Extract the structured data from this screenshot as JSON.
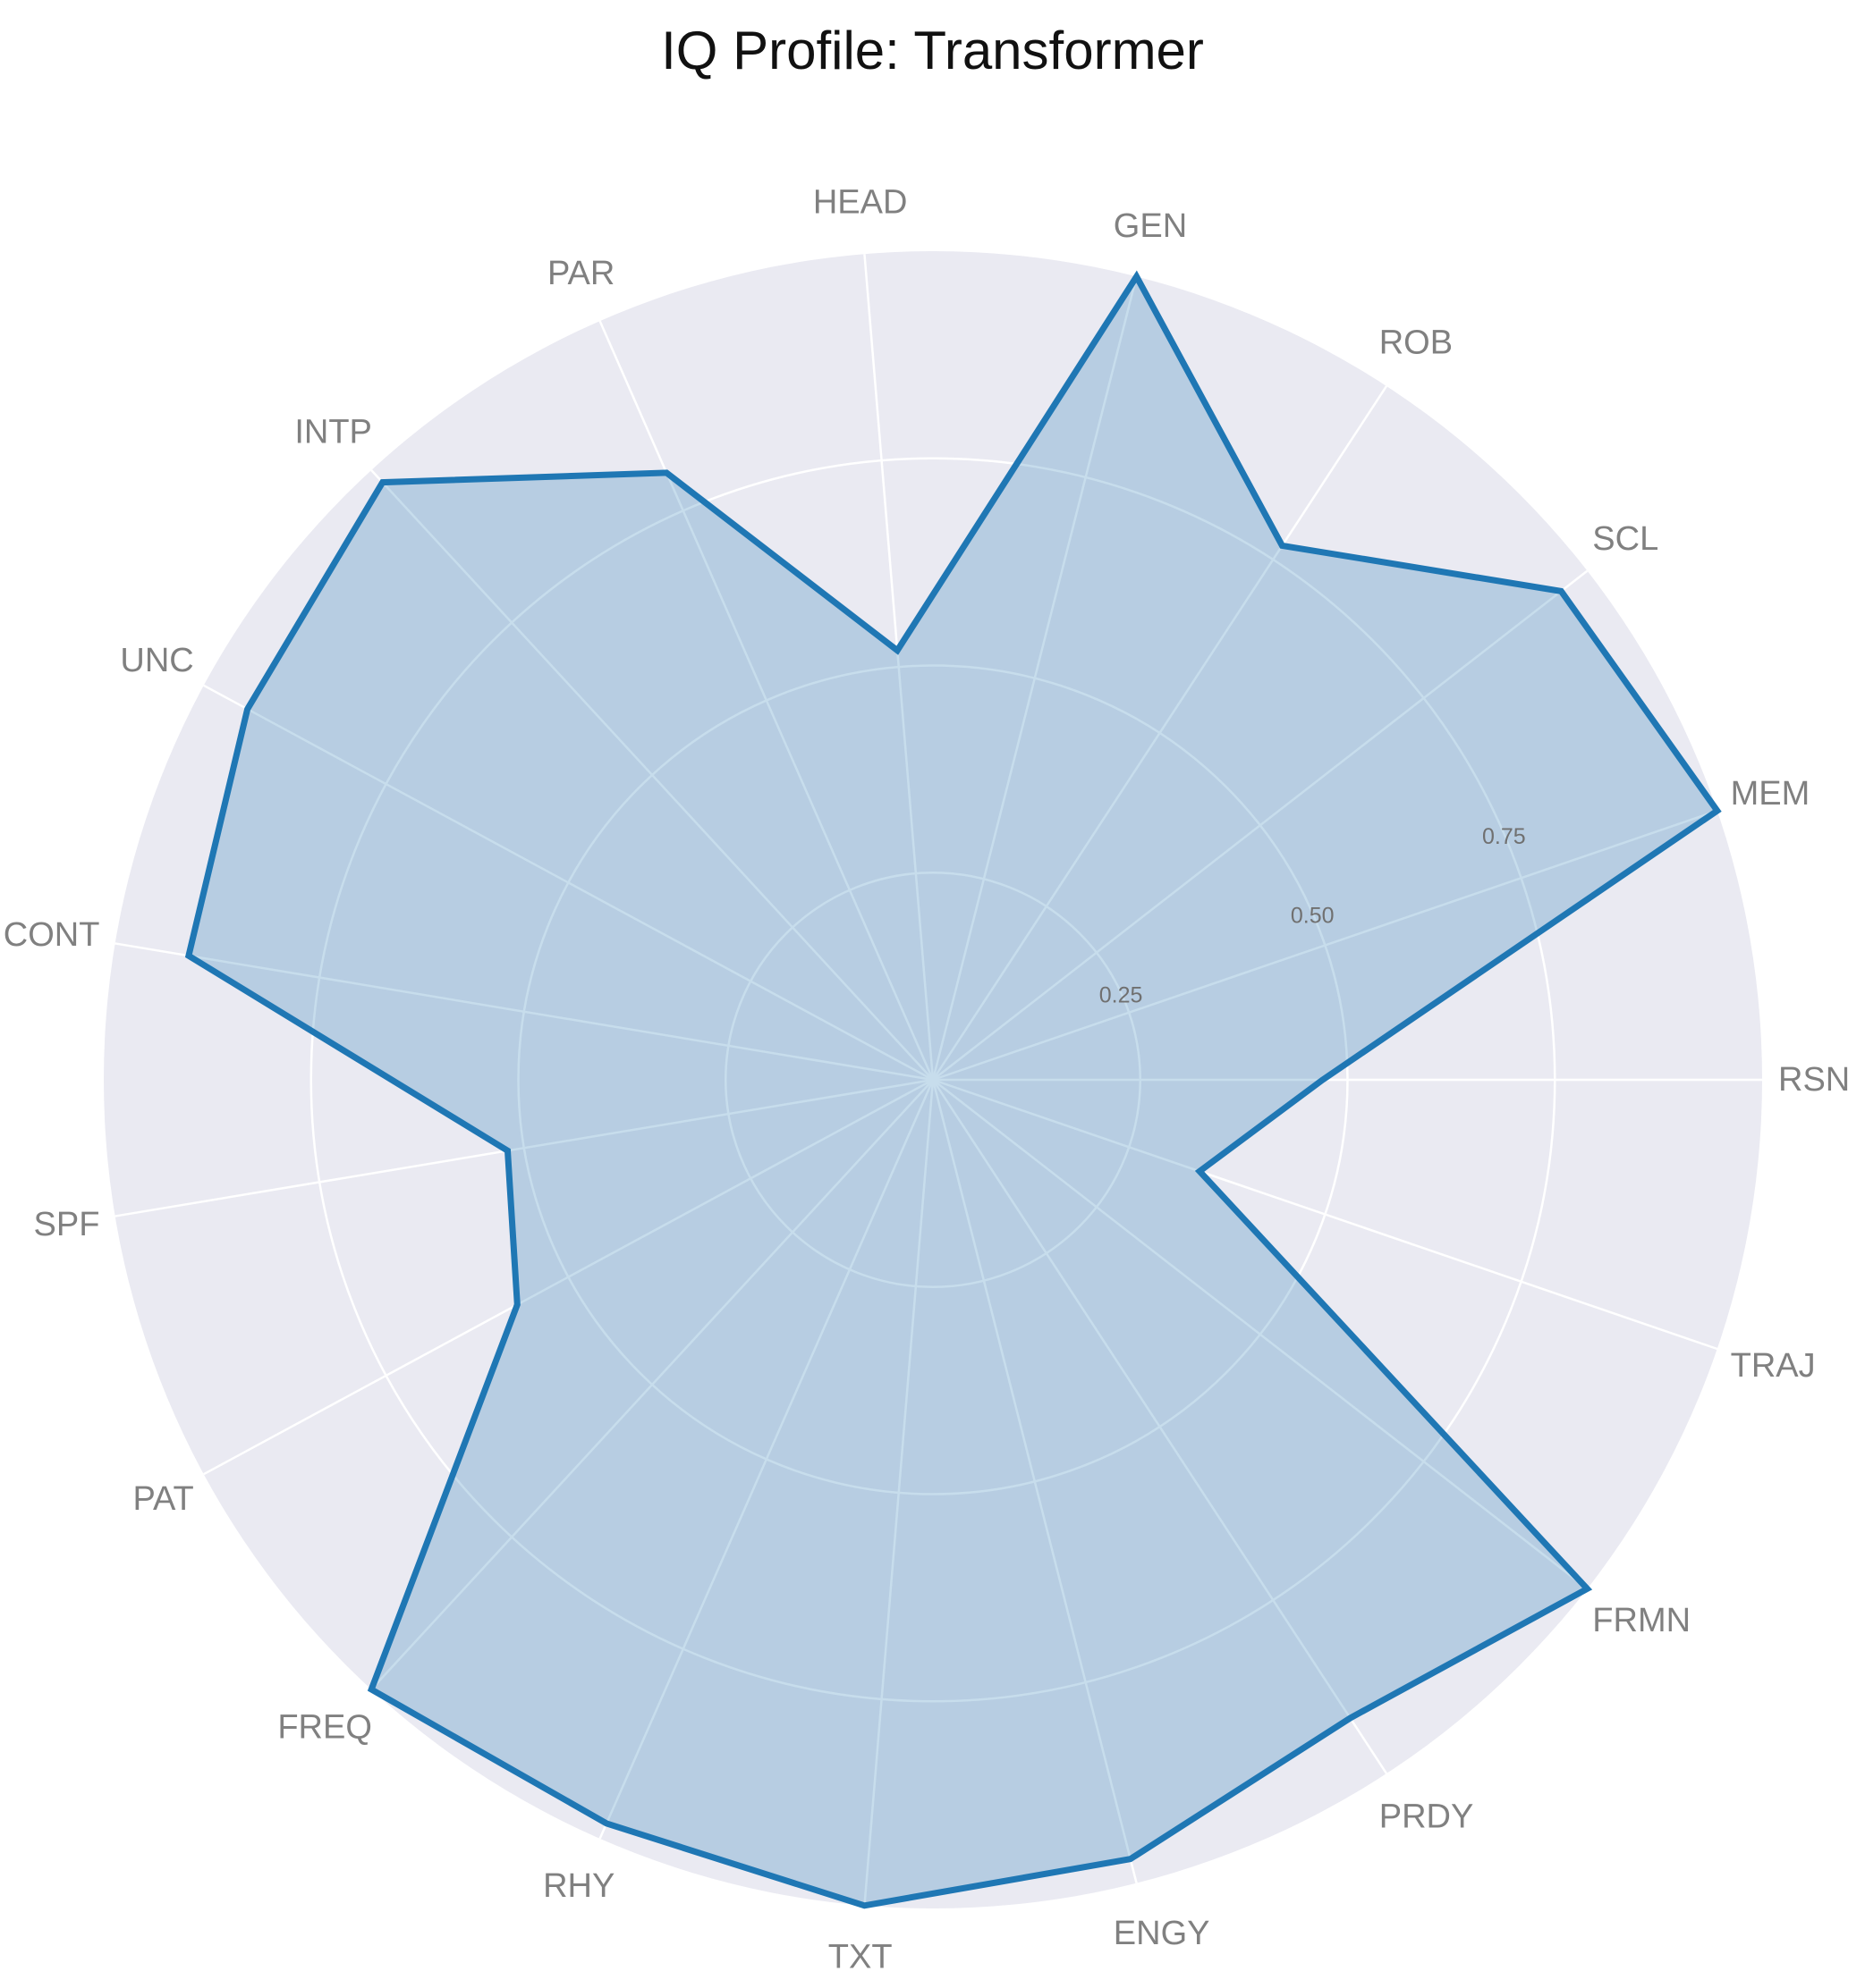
{
  "chart_data": {
    "type": "radar",
    "title": "IQ Profile: Transformer",
    "categories": [
      "RSN",
      "MEM",
      "SCL",
      "ROB",
      "GEN",
      "HEAD",
      "PAR",
      "INTP",
      "UNC",
      "CONT",
      "SPF",
      "PAT",
      "FREQ",
      "RHY",
      "TXT",
      "ENGY",
      "PRDY",
      "FRMN",
      "TRAJ"
    ],
    "series": [
      {
        "name": "",
        "values": [
          0.47,
          1.0,
          0.96,
          0.77,
          1.0,
          0.52,
          0.8,
          0.98,
          0.94,
          0.91,
          0.52,
          0.57,
          1.0,
          0.98,
          1.0,
          0.97,
          0.92,
          1.0,
          0.34
        ]
      }
    ],
    "rlim": [
      0,
      1
    ],
    "rticks": [
      0.25,
      0.5,
      0.75
    ],
    "rtick_labels": [
      "0.25",
      "0.50",
      "0.75"
    ],
    "grid": true,
    "colors": {
      "line": "#1f77b4",
      "fill": "#1f77b4",
      "background": "#eaeaf2",
      "grid": "#ffffff"
    }
  }
}
